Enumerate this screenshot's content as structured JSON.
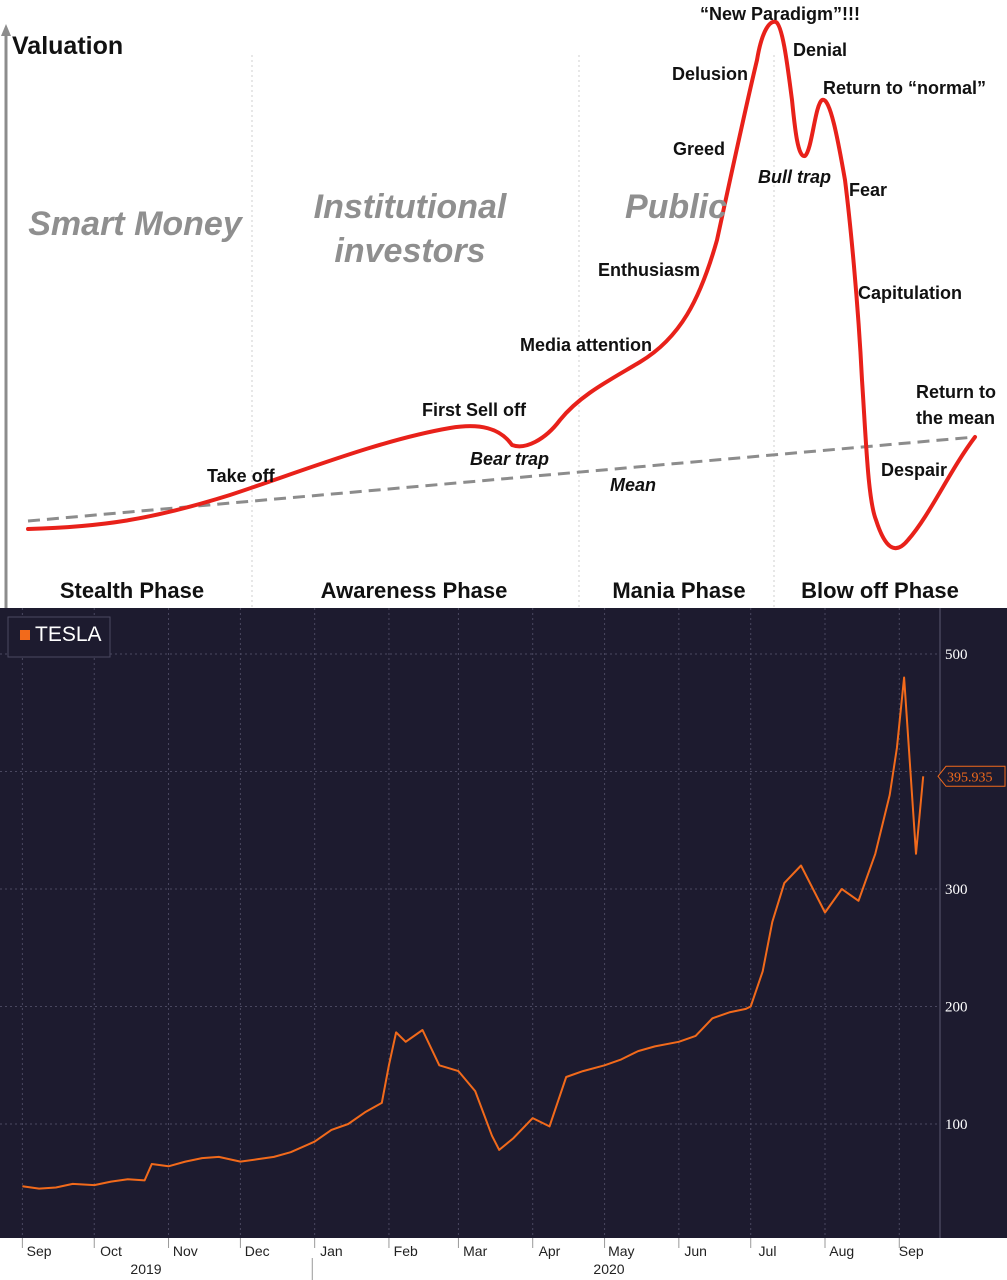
{
  "chart_data": [
    {
      "type": "line",
      "ylabel": "Valuation",
      "crowds": [
        [
          "Smart Money"
        ],
        [
          "Institutional",
          "investors"
        ],
        [
          "Public"
        ]
      ],
      "phases": [
        "Stealth Phase",
        "Awareness Phase",
        "Mania Phase",
        "Blow off Phase"
      ],
      "curve_labels": {
        "take_off": "Take off",
        "first_sell_off": "First Sell off",
        "bear_trap": "Bear trap",
        "media_attention": "Media attention",
        "enthusiasm": "Enthusiasm",
        "greed": "Greed",
        "delusion": "Delusion",
        "new_paradigm": "“New Paradigm”!!!",
        "denial": "Denial",
        "return_to_normal": "Return to “normal”",
        "bull_trap": "Bull trap",
        "fear": "Fear",
        "capitulation": "Capitulation",
        "despair": "Despair",
        "return_to_mean": [
          "Return to",
          "the mean"
        ],
        "mean": "Mean"
      },
      "line_color": "#e8211a",
      "mean_color": "#8c8c8c"
    },
    {
      "type": "line",
      "legend": "TESLA",
      "line_color": "#f26a1b",
      "background": "#1d1b2f",
      "ylim": [
        0,
        510
      ],
      "yticks": [
        100,
        200,
        300,
        500
      ],
      "xticks": [
        "Sep",
        "Oct",
        "Nov",
        "Dec",
        "Jan",
        "Feb",
        "Mar",
        "Apr",
        "May",
        "Jun",
        "Jul",
        "Aug",
        "Sep"
      ],
      "years": [
        "2019",
        "2020"
      ],
      "last_value_label": "395.935",
      "series": [
        {
          "name": "TESLA",
          "x": [
            "2019-09-01",
            "2019-09-08",
            "2019-09-15",
            "2019-09-22",
            "2019-10-01",
            "2019-10-08",
            "2019-10-15",
            "2019-10-22",
            "2019-10-25",
            "2019-11-01",
            "2019-11-08",
            "2019-11-15",
            "2019-11-22",
            "2019-12-01",
            "2019-12-08",
            "2019-12-15",
            "2019-12-22",
            "2020-01-01",
            "2020-01-08",
            "2020-01-15",
            "2020-01-22",
            "2020-01-29",
            "2020-02-01",
            "2020-02-04",
            "2020-02-08",
            "2020-02-15",
            "2020-02-22",
            "2020-03-01",
            "2020-03-08",
            "2020-03-15",
            "2020-03-18",
            "2020-03-24",
            "2020-04-01",
            "2020-04-08",
            "2020-04-15",
            "2020-04-22",
            "2020-05-01",
            "2020-05-08",
            "2020-05-15",
            "2020-05-22",
            "2020-06-01",
            "2020-06-08",
            "2020-06-15",
            "2020-06-22",
            "2020-06-29",
            "2020-07-01",
            "2020-07-06",
            "2020-07-10",
            "2020-07-15",
            "2020-07-22",
            "2020-08-01",
            "2020-08-08",
            "2020-08-15",
            "2020-08-22",
            "2020-08-28",
            "2020-08-31",
            "2020-09-03",
            "2020-09-08",
            "2020-09-11"
          ],
          "y": [
            47,
            45,
            46,
            49,
            48,
            51,
            53,
            52,
            66,
            64,
            68,
            71,
            72,
            68,
            70,
            72,
            76,
            85,
            95,
            100,
            110,
            118,
            150,
            178,
            170,
            180,
            150,
            145,
            128,
            90,
            78,
            88,
            105,
            98,
            140,
            145,
            150,
            155,
            162,
            166,
            170,
            175,
            190,
            195,
            198,
            200,
            230,
            272,
            305,
            320,
            280,
            300,
            290,
            330,
            380,
            420,
            480,
            330,
            395.935
          ]
        }
      ]
    }
  ]
}
